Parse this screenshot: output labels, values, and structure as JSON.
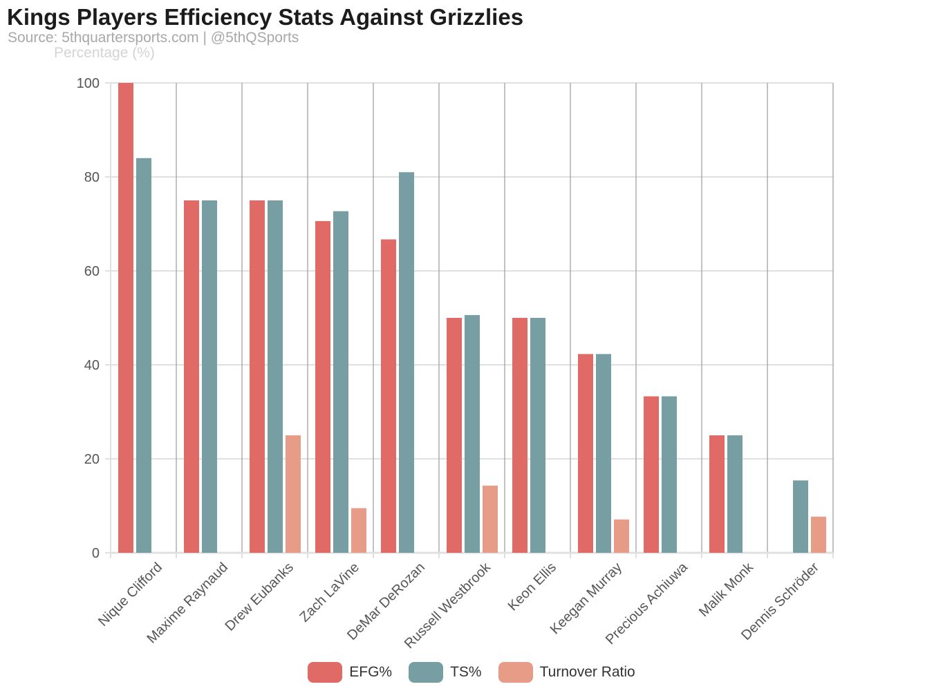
{
  "header": {
    "title": "Kings Players Efficiency Stats Against Grizzlies",
    "subtitle": "Source: 5thquartersports.com | @5thQSports"
  },
  "colors": {
    "efg": "#e06a66",
    "ts": "#769ea3",
    "tov": "#e79c87",
    "grid": "#e0e0e0",
    "axis": "#9a9a9a"
  },
  "chart_data": {
    "type": "bar",
    "title": "Kings Players Efficiency Stats Against Grizzlies",
    "ylabel": "Percentage (%)",
    "xlabel": "",
    "ylim": [
      0,
      100
    ],
    "yticks": [
      0,
      20,
      40,
      60,
      80,
      100
    ],
    "categories": [
      "Nique Clifford",
      "Maxime Raynaud",
      "Drew Eubanks",
      "Zach LaVine",
      "DeMar DeRozan",
      "Russell Westbrook",
      "Keon Ellis",
      "Keegan Murray",
      "Precious Achiuwa",
      "Malik Monk",
      "Dennis Schröder"
    ],
    "series": [
      {
        "name": "EFG%",
        "key": "efg",
        "values": [
          100,
          75,
          75,
          70.6,
          66.7,
          50,
          50,
          42.3,
          33.3,
          25,
          0
        ]
      },
      {
        "name": "TS%",
        "key": "ts",
        "values": [
          84,
          75,
          75,
          72.7,
          81,
          50.6,
          50,
          42.3,
          33.3,
          25,
          15.4
        ]
      },
      {
        "name": "Turnover Ratio",
        "key": "tov",
        "values": [
          0,
          0,
          25,
          9.5,
          0,
          14.3,
          0,
          7.1,
          0,
          0,
          7.7
        ]
      }
    ],
    "legend_position": "bottom"
  }
}
